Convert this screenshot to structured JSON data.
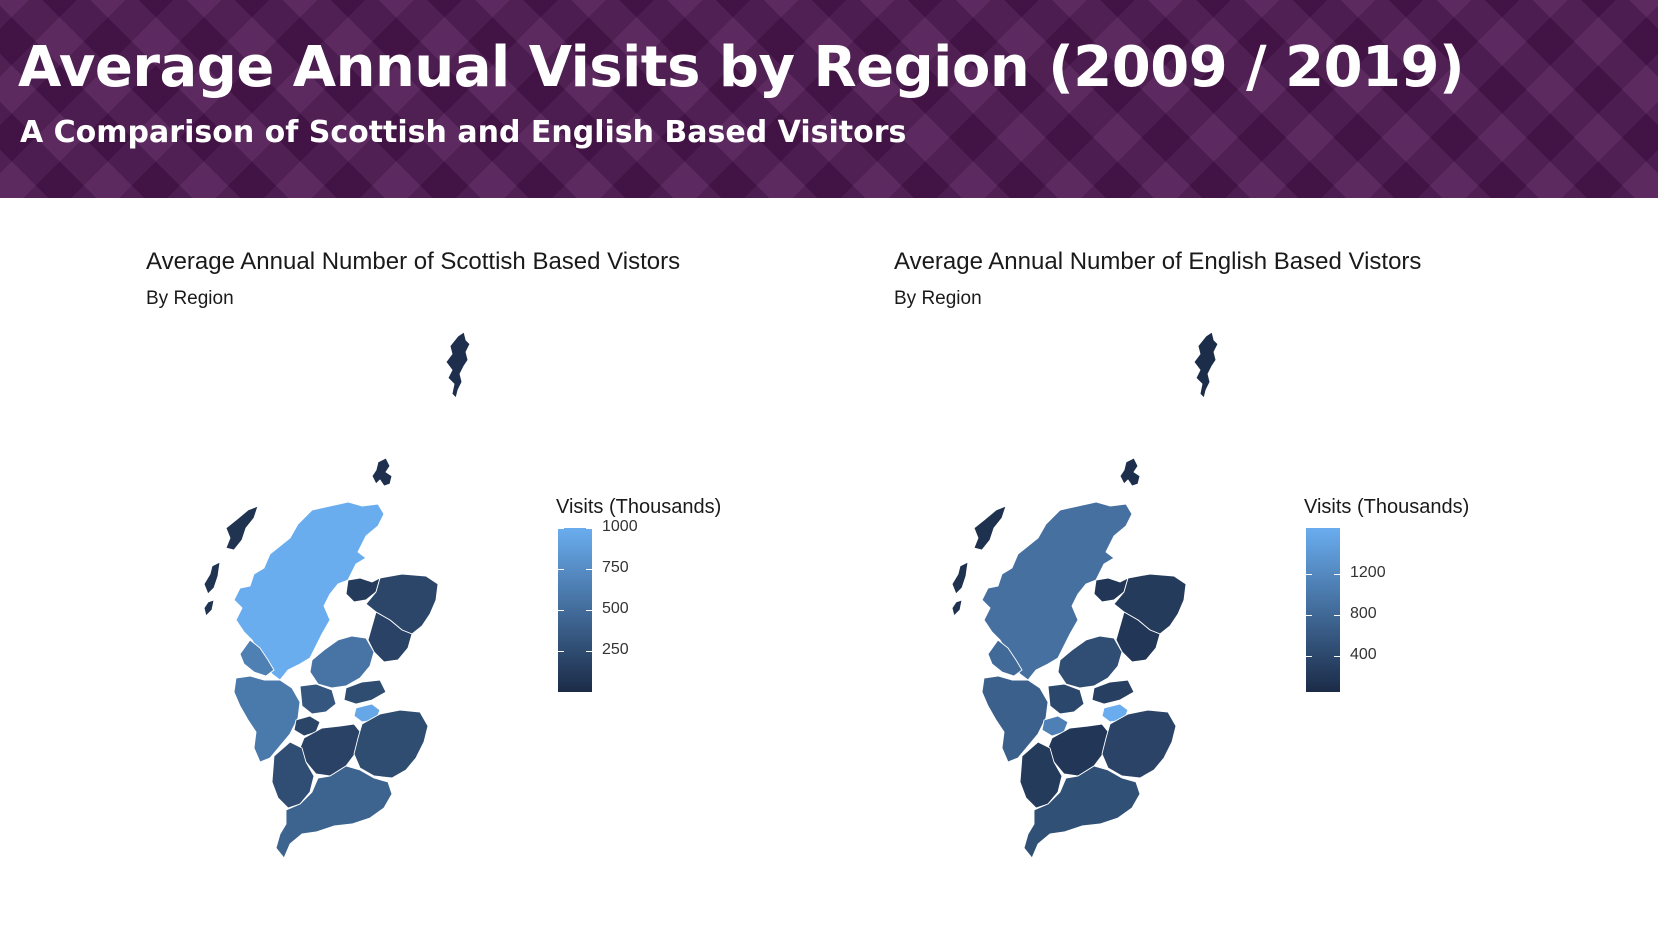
{
  "header": {
    "title": "Average Annual Visits by Region (2009 / 2019)",
    "subtitle": "A Comparison of Scottish and English Based Visitors"
  },
  "colors": {
    "banner": "#4c1650",
    "scale_low": "#1b2b47",
    "scale_high": "#6aadef",
    "borders": "#ffffff"
  },
  "chart_data": [
    {
      "type": "heatmap",
      "title": "Average Annual Number of Scottish Based Vistors",
      "subtitle": "By Region",
      "legend": {
        "title": "Visits (Thousands)",
        "min": 0,
        "max": 1000,
        "ticks": [
          1000,
          750,
          500,
          250
        ],
        "placement": "right"
      },
      "regions": [
        {
          "id": "shetland",
          "value": 30
        },
        {
          "id": "orkney",
          "value": 40
        },
        {
          "id": "western-isles",
          "value": 60
        },
        {
          "id": "highland",
          "value": 1000
        },
        {
          "id": "highland-south",
          "value": 650
        },
        {
          "id": "moray",
          "value": 120
        },
        {
          "id": "aberdeenshire",
          "value": 210
        },
        {
          "id": "angus",
          "value": 180
        },
        {
          "id": "perth-kinross",
          "value": 560
        },
        {
          "id": "argyll-bute",
          "value": 600
        },
        {
          "id": "stirling",
          "value": 330
        },
        {
          "id": "fife",
          "value": 250
        },
        {
          "id": "edinburgh",
          "value": 950
        },
        {
          "id": "glasgow",
          "value": 200
        },
        {
          "id": "south-lanarkshire",
          "value": 180
        },
        {
          "id": "ayrshire",
          "value": 260
        },
        {
          "id": "borders",
          "value": 250
        },
        {
          "id": "dumfries-galloway",
          "value": 430
        }
      ]
    },
    {
      "type": "heatmap",
      "title": "Average Annual Number of English Based Vistors",
      "subtitle": "By Region",
      "legend": {
        "title": "Visits (Thousands)",
        "min": 50,
        "max": 1650,
        "ticks": [
          1200,
          800,
          400
        ],
        "placement": "right"
      },
      "regions": [
        {
          "id": "shetland",
          "value": 70
        },
        {
          "id": "orkney",
          "value": 100
        },
        {
          "id": "western-isles",
          "value": 120
        },
        {
          "id": "highland",
          "value": 900
        },
        {
          "id": "highland-south",
          "value": 820
        },
        {
          "id": "moray",
          "value": 200
        },
        {
          "id": "aberdeenshire",
          "value": 250
        },
        {
          "id": "angus",
          "value": 200
        },
        {
          "id": "perth-kinross",
          "value": 480
        },
        {
          "id": "argyll-bute",
          "value": 700
        },
        {
          "id": "stirling",
          "value": 400
        },
        {
          "id": "fife",
          "value": 300
        },
        {
          "id": "edinburgh",
          "value": 1650
        },
        {
          "id": "glasgow",
          "value": 1100
        },
        {
          "id": "south-lanarkshire",
          "value": 200
        },
        {
          "id": "ayrshire",
          "value": 250
        },
        {
          "id": "borders",
          "value": 350
        },
        {
          "id": "dumfries-galloway",
          "value": 500
        }
      ]
    }
  ]
}
